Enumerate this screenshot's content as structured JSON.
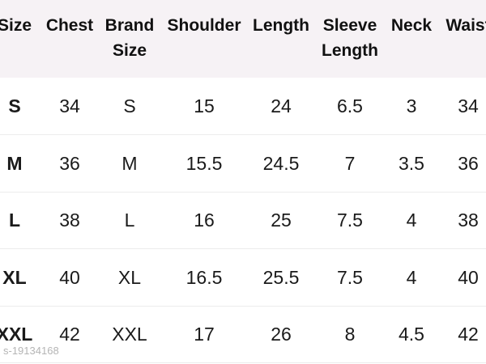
{
  "table": {
    "headers": [
      [
        "Size"
      ],
      [
        "Chest"
      ],
      [
        "Brand",
        "Size"
      ],
      [
        "Shoulder"
      ],
      [
        "Length"
      ],
      [
        "Sleeve",
        "Length"
      ],
      [
        "Neck"
      ],
      [
        "Waist"
      ]
    ],
    "rows": [
      [
        "S",
        "34",
        "S",
        "15",
        "24",
        "6.5",
        "3",
        "34"
      ],
      [
        "M",
        "36",
        "M",
        "15.5",
        "24.5",
        "7",
        "3.5",
        "36"
      ],
      [
        "L",
        "38",
        "L",
        "16",
        "25",
        "7.5",
        "4",
        "38"
      ],
      [
        "XL",
        "40",
        "XL",
        "16.5",
        "25.5",
        "7.5",
        "4",
        "40"
      ],
      [
        "XXL",
        "42",
        "XXL",
        "17",
        "26",
        "8",
        "4.5",
        "42"
      ]
    ]
  },
  "watermark": "s-19134168",
  "colors": {
    "header_bg": "#f6f2f5",
    "text": "#111111"
  }
}
